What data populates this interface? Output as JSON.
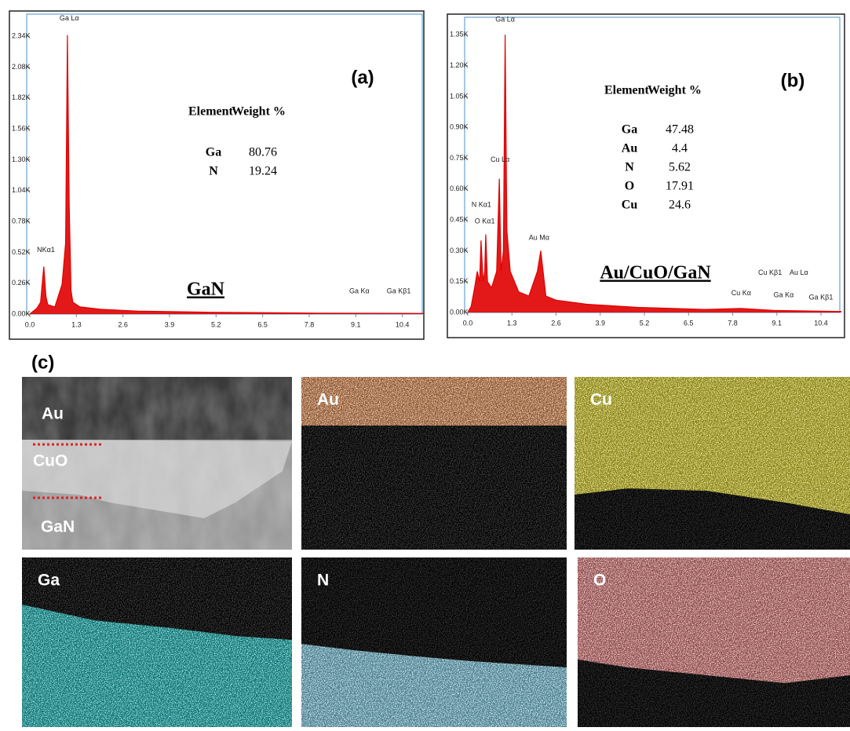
{
  "chart_data": [
    {
      "type": "area",
      "panel": "(a)",
      "sample": "GaN",
      "color": "#e00000",
      "x": [
        0,
        0.2,
        0.3,
        0.39,
        0.45,
        0.5,
        0.7,
        0.9,
        1.0,
        1.05,
        1.1,
        1.15,
        1.2,
        1.4,
        2,
        3,
        5,
        8,
        11
      ],
      "values": [
        0,
        50,
        100,
        400,
        150,
        80,
        60,
        250,
        600,
        2350,
        900,
        200,
        100,
        60,
        40,
        25,
        15,
        8,
        5
      ],
      "xlim": [
        0,
        11.0
      ],
      "ylim": [
        0,
        2500
      ],
      "xticks": [
        {
          "value": 0,
          "label": "0.0"
        },
        1.3,
        2.6,
        3.9,
        5.2,
        6.5,
        7.8,
        9.1,
        10.4
      ],
      "yticks": [
        {
          "value": 0,
          "label": "0.00K"
        },
        {
          "value": 260,
          "label": "0.26K"
        },
        {
          "value": 520,
          "label": "0.52K"
        },
        {
          "value": 780,
          "label": "0.78K"
        },
        {
          "value": 1040,
          "label": "1.04K"
        },
        {
          "value": 1300,
          "label": "1.30K"
        },
        {
          "value": 1560,
          "label": "1.56K"
        },
        {
          "value": 1820,
          "label": "1.82K"
        },
        {
          "value": 2080,
          "label": "2.08K"
        },
        {
          "value": 2340,
          "label": "2.34K"
        }
      ],
      "annotations": [
        {
          "text": "Ga Lα",
          "x": 1.1,
          "y": 2450
        },
        {
          "text": "NKα1",
          "x": 0.45,
          "y": 500
        },
        {
          "text": "Ga Kα",
          "x": 9.2,
          "y": 150
        },
        {
          "text": "Ga Kβ1",
          "x": 10.3,
          "y": 150
        }
      ],
      "table": {
        "header": [
          "Element",
          "Weight %"
        ],
        "rows": [
          [
            "Ga",
            "80.76"
          ],
          [
            "N",
            "19.24"
          ]
        ]
      }
    },
    {
      "type": "area",
      "panel": "(b)",
      "sample": "Au/CuO/GaN",
      "color": "#e00000",
      "x": [
        0,
        0.1,
        0.2,
        0.28,
        0.35,
        0.39,
        0.45,
        0.5,
        0.53,
        0.58,
        0.7,
        0.85,
        0.93,
        0.98,
        1.05,
        1.1,
        1.15,
        1.25,
        1.5,
        1.8,
        2.05,
        2.15,
        2.3,
        2.6,
        3.5,
        5,
        7,
        8.05,
        9,
        11
      ],
      "values": [
        0,
        30,
        120,
        200,
        150,
        350,
        150,
        200,
        380,
        150,
        120,
        200,
        650,
        200,
        300,
        1350,
        400,
        200,
        100,
        80,
        200,
        300,
        80,
        60,
        40,
        25,
        15,
        20,
        10,
        5
      ],
      "xlim": [
        0,
        11.0
      ],
      "ylim": [
        0,
        1420
      ],
      "xticks": [
        {
          "value": 0,
          "label": "0.0"
        },
        1.3,
        2.6,
        3.9,
        5.2,
        6.5,
        7.8,
        9.1,
        10.4
      ],
      "yticks": [
        {
          "value": 0,
          "label": "0.00K"
        },
        {
          "value": 150,
          "label": "0.15K"
        },
        {
          "value": 300,
          "label": "0.30K"
        },
        {
          "value": 450,
          "label": "0.45K"
        },
        {
          "value": 600,
          "label": "0.60K"
        },
        {
          "value": 750,
          "label": "0.75K"
        },
        {
          "value": 900,
          "label": "0.90K"
        },
        {
          "value": 1050,
          "label": "1.05K"
        },
        {
          "value": 1200,
          "label": "1.20K"
        },
        {
          "value": 1350,
          "label": "1.35K"
        }
      ],
      "annotations": [
        {
          "text": "Ga Lα",
          "x": 1.1,
          "y": 1400
        },
        {
          "text": "Cu Lα",
          "x": 0.95,
          "y": 720
        },
        {
          "text": "N  Kα1",
          "x": 0.4,
          "y": 500
        },
        {
          "text": "O  Kα1",
          "x": 0.5,
          "y": 420
        },
        {
          "text": "Au Mα",
          "x": 2.1,
          "y": 340
        },
        {
          "text": "Cu Kα",
          "x": 8.05,
          "y": 70
        },
        {
          "text": "Cu Kβ1",
          "x": 8.9,
          "y": 170
        },
        {
          "text": "Au Lα",
          "x": 9.75,
          "y": 170
        },
        {
          "text": "Ga Kα",
          "x": 9.3,
          "y": 60
        },
        {
          "text": "Ga Kβ1",
          "x": 10.4,
          "y": 50
        }
      ],
      "table": {
        "header": [
          "Element",
          "Weight %"
        ],
        "rows": [
          [
            "Ga",
            "47.48"
          ],
          [
            "Au",
            "4.4"
          ],
          [
            "N",
            "5.62"
          ],
          [
            "O",
            "17.91"
          ],
          [
            "Cu",
            "24.6"
          ]
        ]
      }
    }
  ],
  "maps": {
    "panel": "(c)",
    "sem_labels": [
      "Au",
      "CuO",
      "GaN"
    ],
    "images": [
      {
        "label": "Au",
        "color": "#f0a060"
      },
      {
        "label": "Cu",
        "color": "#e8e030"
      },
      {
        "label": "Ga",
        "color": "#20c8c8"
      },
      {
        "label": "N",
        "color": "#90d8f0"
      },
      {
        "label": "O",
        "color": "#f09090"
      }
    ]
  }
}
